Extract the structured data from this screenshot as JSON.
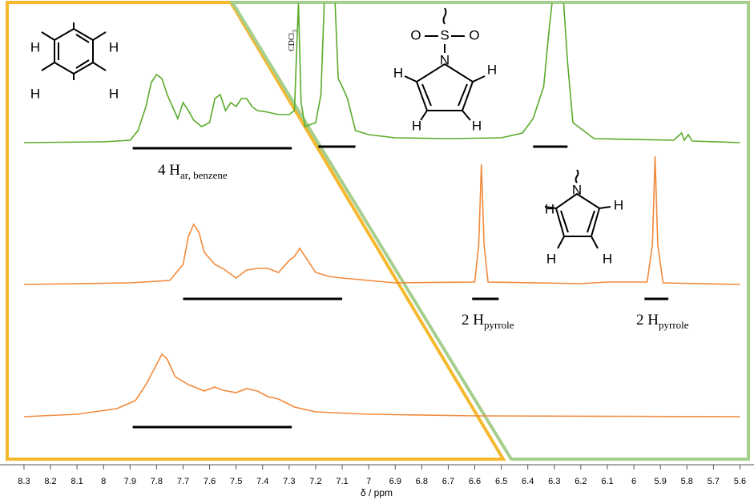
{
  "chart_data": {
    "type": "line",
    "xlabel": "δ / ppm",
    "xlim": [
      8.33,
      5.55
    ],
    "reverse_x": true,
    "xticks": [
      8.3,
      8.2,
      8.1,
      8.0,
      7.9,
      7.8,
      7.7,
      7.6,
      7.5,
      7.4,
      7.3,
      7.2,
      7.1,
      7.0,
      6.9,
      6.8,
      6.7,
      6.6,
      6.5,
      6.4,
      6.3,
      6.2,
      6.1,
      6.0,
      5.9,
      5.8,
      5.7,
      5.6
    ],
    "series": [
      {
        "color": "#5aab2a",
        "x": [
          8.3,
          8.0,
          7.9,
          7.87,
          7.84,
          7.82,
          7.8,
          7.78,
          7.76,
          7.74,
          7.72,
          7.7,
          7.68,
          7.66,
          7.63,
          7.6,
          7.58,
          7.56,
          7.54,
          7.52,
          7.5,
          7.48,
          7.46,
          7.44,
          7.42,
          7.38,
          7.34,
          7.3,
          7.28,
          7.265,
          7.255,
          7.24,
          7.2,
          7.18,
          7.165,
          7.13,
          7.115,
          7.1,
          7.08,
          7.05,
          7.0,
          6.9,
          6.7,
          6.5,
          6.42,
          6.38,
          6.34,
          6.32,
          6.3,
          6.27,
          6.25,
          6.23,
          6.15,
          5.85,
          5.82,
          5.81,
          5.795,
          5.78,
          5.6
        ],
        "values": [
          0,
          1,
          3,
          15,
          45,
          75,
          85,
          80,
          60,
          45,
          30,
          50,
          40,
          28,
          20,
          25,
          55,
          60,
          40,
          50,
          45,
          55,
          55,
          45,
          40,
          38,
          35,
          35,
          40,
          175,
          50,
          20,
          25,
          60,
          200,
          200,
          80,
          70,
          55,
          15,
          10,
          6,
          5,
          6,
          12,
          30,
          70,
          140,
          200,
          200,
          100,
          25,
          5,
          3,
          12,
          3,
          10,
          2,
          0
        ],
        "integrals": [
          [
            7.89,
            7.29
          ],
          [
            7.19,
            7.05
          ],
          [
            6.38,
            6.25
          ]
        ]
      },
      {
        "color": "#f28a3c",
        "x": [
          8.3,
          7.9,
          7.75,
          7.7,
          7.68,
          7.66,
          7.64,
          7.62,
          7.58,
          7.55,
          7.5,
          7.46,
          7.42,
          7.38,
          7.34,
          7.3,
          7.28,
          7.26,
          7.24,
          7.2,
          7.15,
          7.1,
          6.9,
          6.6,
          6.585,
          6.575,
          6.565,
          6.55,
          6.2,
          6.1,
          5.95,
          5.93,
          5.92,
          5.91,
          5.89,
          5.6
        ],
        "values": [
          0,
          2,
          5,
          25,
          60,
          75,
          65,
          40,
          25,
          20,
          8,
          18,
          20,
          20,
          15,
          30,
          35,
          45,
          35,
          15,
          10,
          8,
          2,
          3,
          50,
          150,
          50,
          3,
          1,
          3,
          3,
          50,
          160,
          50,
          2,
          0
        ],
        "integrals": [
          [
            7.7,
            7.1
          ],
          [
            6.61,
            6.51
          ],
          [
            5.96,
            5.87
          ]
        ]
      },
      {
        "color": "#f28a3c",
        "x": [
          8.3,
          8.1,
          7.95,
          7.88,
          7.84,
          7.8,
          7.78,
          7.76,
          7.73,
          7.68,
          7.62,
          7.58,
          7.55,
          7.5,
          7.46,
          7.42,
          7.38,
          7.34,
          7.28,
          7.2,
          7.0,
          6.6,
          5.6
        ],
        "values": [
          0,
          3,
          10,
          20,
          40,
          65,
          78,
          72,
          50,
          40,
          32,
          37,
          33,
          30,
          35,
          32,
          25,
          22,
          12,
          6,
          3,
          1,
          0
        ],
        "integrals": [
          [
            7.89,
            7.29
          ]
        ]
      }
    ],
    "annotations": [
      {
        "text": "4 H",
        "sub": "ar, benzene"
      },
      {
        "text": "2 H",
        "sub": "pyrrole"
      },
      {
        "text": "2 H",
        "sub": "pyrrole"
      },
      {
        "text": "CDCl",
        "sub": "3"
      }
    ],
    "structures": [
      {
        "atoms": [
          "H",
          "H",
          "H",
          "H"
        ]
      },
      {
        "atoms": [
          "O",
          "S",
          "O",
          "N",
          "H",
          "H",
          "H",
          "H"
        ]
      },
      {
        "atoms": [
          "N",
          "H",
          "H",
          "H",
          "H"
        ]
      }
    ]
  }
}
